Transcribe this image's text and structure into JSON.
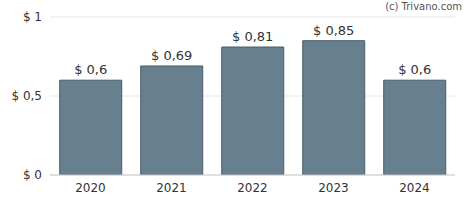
{
  "chart_data": {
    "type": "bar",
    "annotation": "(c) Trivano.com",
    "categories": [
      "2020",
      "2021",
      "2022",
      "2023",
      "2024"
    ],
    "values": [
      0.6,
      0.69,
      0.81,
      0.85,
      0.6
    ],
    "value_labels": [
      "$ 0,6",
      "$ 0,69",
      "$ 0,81",
      "$ 0,85",
      "$ 0,6"
    ],
    "data_labels": true,
    "color": "#66808f",
    "ylim": [
      0,
      1
    ],
    "yticks": [
      {
        "value": 0,
        "label": "$ 0"
      },
      {
        "value": 0.5,
        "label": "$ 0,5"
      },
      {
        "value": 1,
        "label": "$ 1"
      }
    ],
    "grid": true
  }
}
